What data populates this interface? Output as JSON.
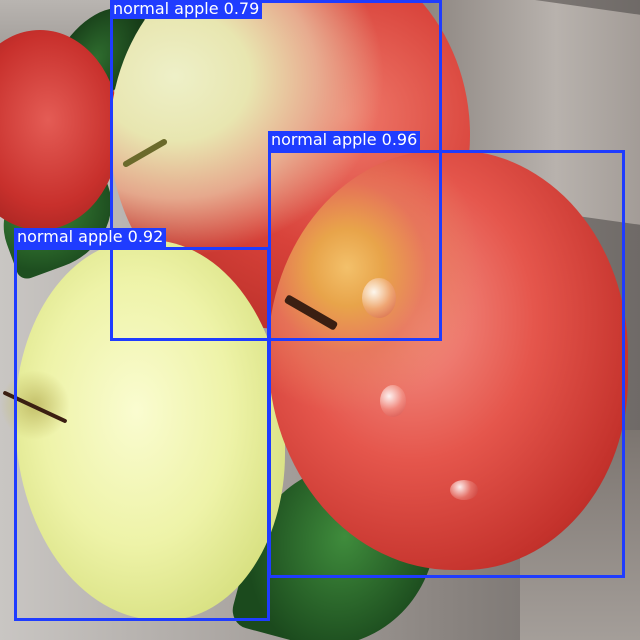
{
  "detections": [
    {
      "label": "normal apple",
      "confidence": "0.79",
      "text": "normal apple 0.79"
    },
    {
      "label": "normal apple",
      "confidence": "0.96",
      "text": "normal apple 0.96"
    },
    {
      "label": "normal apple",
      "confidence": "0.92",
      "text": "normal apple 0.92"
    }
  ],
  "colors": {
    "box": "#1f3cff",
    "label_text": "#ffffff"
  }
}
